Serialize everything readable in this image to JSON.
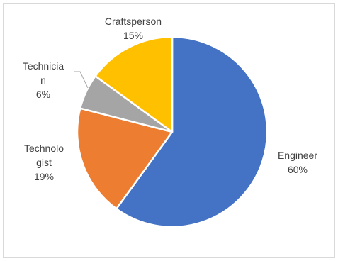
{
  "chart_data": {
    "type": "pie",
    "title": "",
    "legend": "none",
    "slices": [
      {
        "category": "Engineer",
        "percent_label": "60%",
        "value": 60,
        "color": "#4472c4",
        "label_lines": [
          "Engineer",
          "60%"
        ]
      },
      {
        "category": "Technologist",
        "percent_label": "19%",
        "value": 19,
        "color": "#ed7d31",
        "label_lines": [
          "Technolo",
          "gist",
          "19%"
        ]
      },
      {
        "category": "Technician",
        "percent_label": "6%",
        "value": 6,
        "color": "#a5a5a5",
        "label_lines": [
          "Technicia",
          "n",
          "6%"
        ]
      },
      {
        "category": "Craftsperson",
        "percent_label": "15%",
        "value": 15,
        "color": "#ffc000",
        "label_lines": [
          "Craftsperson",
          "15%"
        ]
      }
    ]
  }
}
